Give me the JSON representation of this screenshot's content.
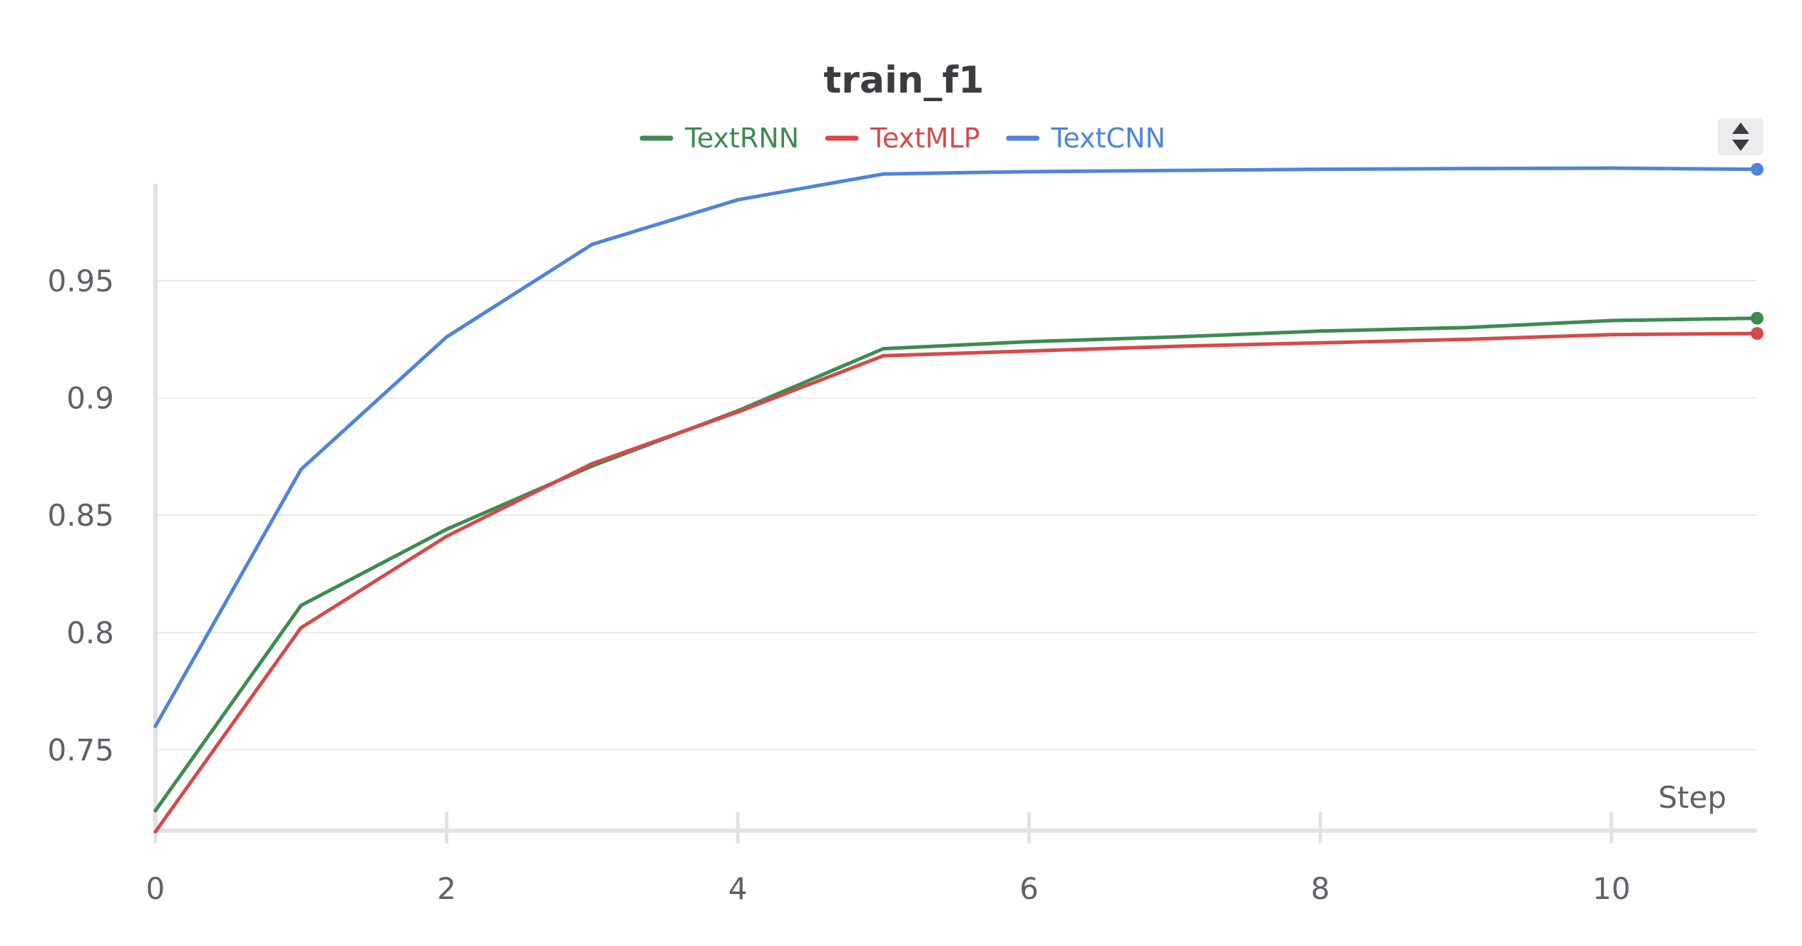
{
  "chart_data": {
    "type": "line",
    "title": "train_f1",
    "xlabel": "Step",
    "ylabel": "",
    "xlim": [
      0,
      11
    ],
    "ylim": [
      0.7155,
      0.998
    ],
    "x_ticks": [
      0,
      2,
      4,
      6,
      8,
      10
    ],
    "x_tick_labels": [
      "0",
      "2",
      "4",
      "6",
      "8",
      "10"
    ],
    "y_ticks": [
      0.75,
      0.8,
      0.85,
      0.9,
      0.95
    ],
    "y_tick_labels": [
      "0.75",
      "0.8",
      "0.85",
      "0.9",
      "0.95"
    ],
    "grid": true,
    "legend_position": "top-center",
    "x": [
      0,
      1,
      2,
      3,
      4,
      5,
      6,
      7,
      8,
      9,
      10,
      11
    ],
    "series": [
      {
        "name": "TextRNN",
        "color": "#3d8b52",
        "values": [
          0.724,
          0.8115,
          0.844,
          0.871,
          0.8945,
          0.921,
          0.924,
          0.926,
          0.9285,
          0.93,
          0.933,
          0.934
        ]
      },
      {
        "name": "TextMLP",
        "color": "#d64a4a",
        "values": [
          0.715,
          0.802,
          0.841,
          0.872,
          0.894,
          0.918,
          0.92,
          0.922,
          0.9235,
          0.925,
          0.927,
          0.9275
        ]
      },
      {
        "name": "TextCNN",
        "color": "#4f84db",
        "values": [
          0.76,
          0.8695,
          0.926,
          0.9655,
          0.9845,
          0.9955,
          0.9965,
          0.997,
          0.9975,
          0.9978,
          0.998,
          0.9975
        ]
      }
    ]
  },
  "controls": {
    "legend_scroll_icon": "sort-up-down-icon"
  }
}
